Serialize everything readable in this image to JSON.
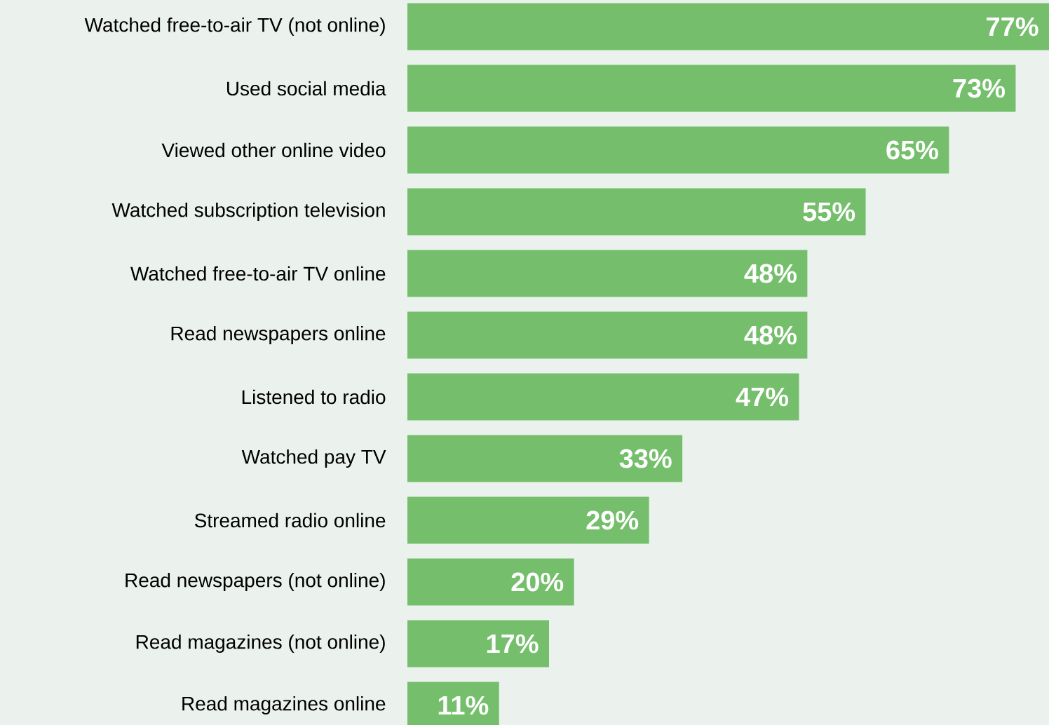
{
  "chart_data": {
    "type": "bar",
    "orientation": "horizontal",
    "categories": [
      "Watched free-to-air TV (not online)",
      "Used social media",
      "Viewed other online video",
      "Watched subscription television",
      "Watched free-to-air TV online",
      "Read newspapers online",
      "Listened to radio",
      "Watched pay TV",
      "Streamed radio online",
      "Read newspapers (not online)",
      "Read magazines (not online)",
      "Read magazines online"
    ],
    "values": [
      77,
      73,
      65,
      55,
      48,
      48,
      47,
      33,
      29,
      20,
      17,
      11
    ],
    "value_labels": [
      "77%",
      "73%",
      "65%",
      "55%",
      "48%",
      "48%",
      "47%",
      "33%",
      "29%",
      "20%",
      "17%",
      "11%"
    ],
    "color": "#75bf6c"
  }
}
